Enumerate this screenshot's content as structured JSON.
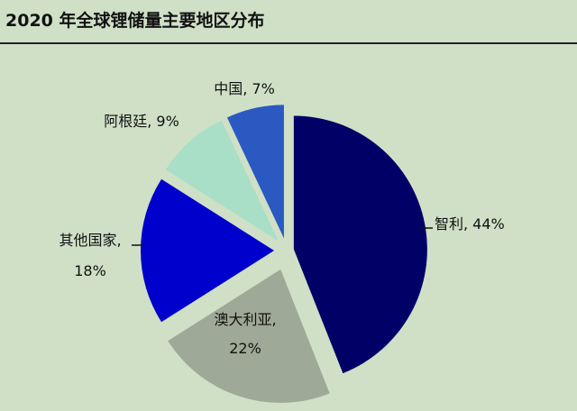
{
  "title": "2020 年全球锂储量主要地区分布",
  "chart_data": {
    "type": "pie",
    "title": "2020 年全球锂储量主要地区分布",
    "slices": [
      {
        "label": "智利, 44%",
        "value": 44,
        "color": "#000066"
      },
      {
        "label": "澳大利亚, 22%",
        "value": 22,
        "color": "#9ea997"
      },
      {
        "label": "其他国家, 18%",
        "value": 18,
        "color": "#0000cc"
      },
      {
        "label": "阿根廷, 9%",
        "value": 9,
        "color": "#a8dfc6"
      },
      {
        "label": "中国, 7%",
        "value": 7,
        "color": "#2a59c2"
      }
    ]
  }
}
